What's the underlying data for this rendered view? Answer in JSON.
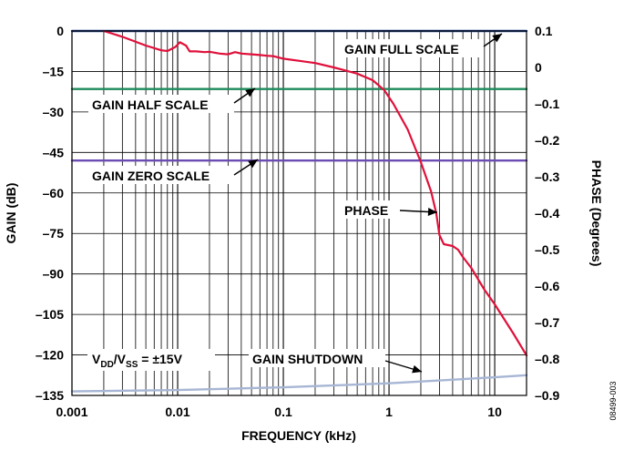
{
  "chart_data": {
    "type": "line",
    "xlabel": "FREQUENCY (kHz)",
    "ylabel": "GAIN (dB)",
    "y2label": "PHASE (Degrees)",
    "xscale": "log",
    "xlim": [
      0.001,
      20
    ],
    "ylim": [
      -135,
      0
    ],
    "y2lim": [
      -0.9,
      0.1
    ],
    "grid": true,
    "x_ticks": [
      0.001,
      0.01,
      0.1,
      1,
      10
    ],
    "x_tick_labels": [
      "0.001",
      "0.01",
      "0.1",
      "1",
      "10"
    ],
    "y_ticks": [
      0,
      -15,
      -30,
      -45,
      -60,
      -75,
      -90,
      -105,
      -120,
      -135
    ],
    "y_tick_labels": [
      "0",
      "–15",
      "–30",
      "–45",
      "–60",
      "–75",
      "–90",
      "–105",
      "–120",
      "–135"
    ],
    "y2_ticks": [
      0.1,
      0,
      -0.1,
      -0.2,
      -0.3,
      -0.4,
      -0.5,
      -0.6,
      -0.7,
      -0.8,
      -0.9
    ],
    "y2_tick_labels": [
      "0.1",
      "0",
      "–0.1",
      "–0.2",
      "–0.3",
      "–0.4",
      "–0.5",
      "–0.6",
      "–0.7",
      "–0.8",
      "–0.9"
    ],
    "series": [
      {
        "name": "GAIN FULL SCALE",
        "axis": "gain",
        "color": "#1f3f8f",
        "x": [
          0.001,
          20
        ],
        "y": [
          0,
          0
        ]
      },
      {
        "name": "GAIN HALF SCALE",
        "axis": "gain",
        "color": "#1e8a5a",
        "x": [
          0.001,
          20
        ],
        "y": [
          -21.5,
          -21.5
        ]
      },
      {
        "name": "GAIN ZERO SCALE",
        "axis": "gain",
        "color": "#6b4cb2",
        "x": [
          0.001,
          20
        ],
        "y": [
          -48,
          -48
        ]
      },
      {
        "name": "GAIN SHUTDOWN",
        "axis": "gain",
        "color": "#a7b6d4",
        "x": [
          0.001,
          0.01,
          0.1,
          1,
          10,
          20
        ],
        "y": [
          -133.5,
          -133.0,
          -132.0,
          -130.5,
          -128.3,
          -127.5
        ]
      },
      {
        "name": "PHASE",
        "axis": "phase",
        "color": "#e0103a",
        "x": [
          0.002,
          0.003,
          0.005,
          0.007,
          0.008,
          0.0095,
          0.0105,
          0.012,
          0.013,
          0.015,
          0.018,
          0.02,
          0.025,
          0.03,
          0.035,
          0.04,
          0.05,
          0.06,
          0.07,
          0.08,
          0.1,
          0.15,
          0.2,
          0.3,
          0.5,
          0.7,
          0.9,
          1.1,
          1.5,
          2,
          2.5,
          2.8,
          3,
          3.3,
          4,
          4.5,
          5,
          6,
          8,
          10,
          15,
          20
        ],
        "y": [
          0.1,
          0.084,
          0.06,
          0.047,
          0.045,
          0.056,
          0.069,
          0.06,
          0.044,
          0.044,
          0.042,
          0.043,
          0.038,
          0.036,
          0.042,
          0.038,
          0.036,
          0.034,
          0.032,
          0.031,
          0.024,
          0.017,
          0.012,
          0.0,
          -0.017,
          -0.035,
          -0.062,
          -0.1,
          -0.17,
          -0.26,
          -0.34,
          -0.4,
          -0.46,
          -0.485,
          -0.49,
          -0.5,
          -0.52,
          -0.55,
          -0.61,
          -0.65,
          -0.73,
          -0.79
        ]
      }
    ],
    "annotations": {
      "full": "GAIN FULL SCALE",
      "half": "GAIN HALF SCALE",
      "zero": "GAIN ZERO SCALE",
      "phase": "PHASE",
      "shutdown": "GAIN SHUTDOWN",
      "supply_main": "V",
      "supply_sub1": "DD",
      "supply_mid": "/V",
      "supply_sub2": "SS",
      "supply_tail": " = ±15V"
    },
    "figure_id": "08499-003"
  }
}
